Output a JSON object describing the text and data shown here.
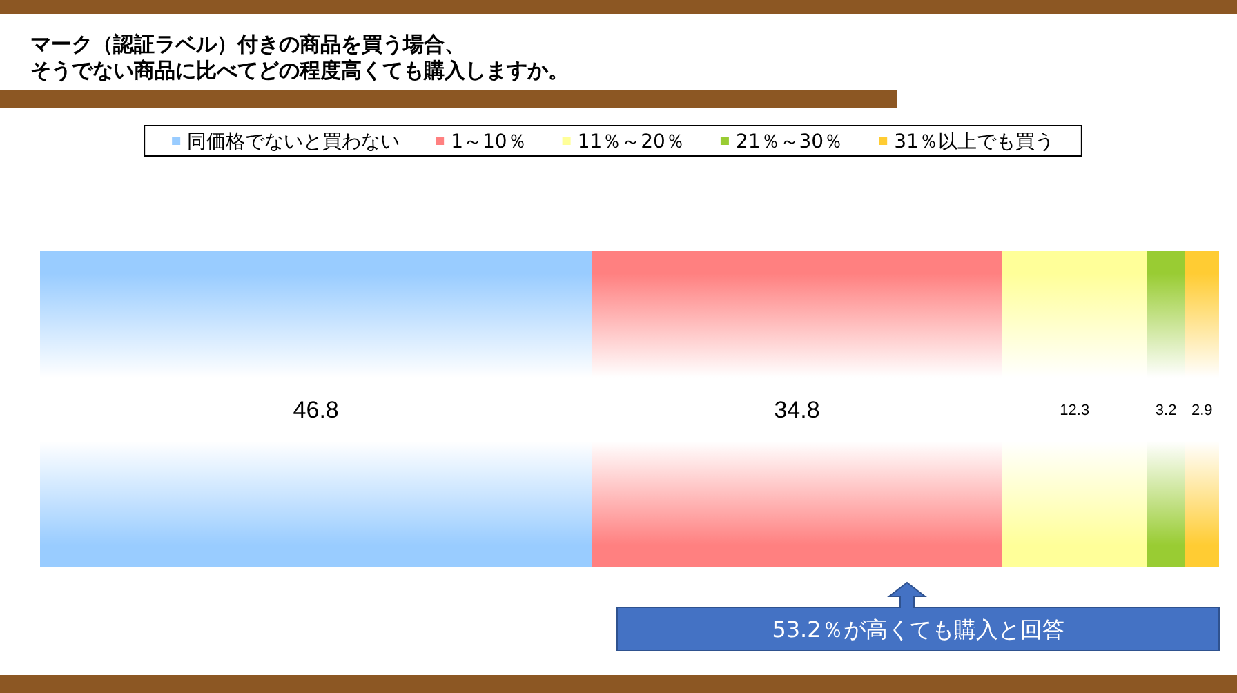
{
  "chart_data": {
    "type": "bar",
    "orientation": "horizontal",
    "stacked": true,
    "title": "マーク（認証ラベル）付きの商品を買う場合、そうでない商品に比べてどの程度高くても購入しますか。",
    "categories": [
      null
    ],
    "series": [
      {
        "name": "同価格でないと買わない",
        "color": "#99ccff",
        "values": [
          46.8
        ]
      },
      {
        "name": "1～10％",
        "color": "#ff8080",
        "values": [
          34.8
        ]
      },
      {
        "name": "11％～20％",
        "color": "#ffff99",
        "values": [
          12.3
        ]
      },
      {
        "name": "21％～30％",
        "color": "#99cc33",
        "values": [
          3.2
        ]
      },
      {
        "name": "31％以上でも買う",
        "color": "#ffcc33",
        "values": [
          2.9
        ]
      }
    ],
    "data_labels": true,
    "legend": "top",
    "annotations": [
      "53.2％が高くても購入と回答"
    ]
  }
}
